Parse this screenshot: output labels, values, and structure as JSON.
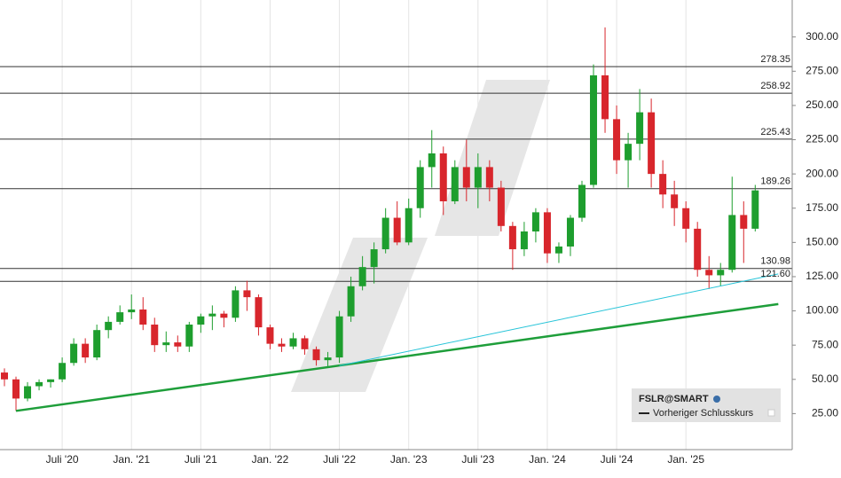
{
  "chart_data": {
    "type": "candlestick",
    "x": [
      "2020-02",
      "2020-03",
      "2020-04",
      "2020-05",
      "2020-06",
      "2020-07",
      "2020-08",
      "2020-09",
      "2020-10",
      "2020-11",
      "2020-12",
      "2021-01",
      "2021-02",
      "2021-03",
      "2021-04",
      "2021-05",
      "2021-06",
      "2021-07",
      "2021-08",
      "2021-09",
      "2021-10",
      "2021-11",
      "2021-12",
      "2022-01",
      "2022-02",
      "2022-03",
      "2022-04",
      "2022-05",
      "2022-06",
      "2022-07",
      "2022-08",
      "2022-09",
      "2022-10",
      "2022-11",
      "2022-12",
      "2023-01",
      "2023-02",
      "2023-03",
      "2023-04",
      "2023-05",
      "2023-06",
      "2023-07",
      "2023-08",
      "2023-09",
      "2023-10",
      "2023-11",
      "2023-12",
      "2024-01",
      "2024-02",
      "2024-03",
      "2024-04",
      "2024-05",
      "2024-06",
      "2024-07",
      "2024-08",
      "2024-09",
      "2024-10",
      "2024-11",
      "2024-12",
      "2025-01",
      "2025-02",
      "2025-03",
      "2025-04",
      "2025-05",
      "2025-06",
      "2025-07"
    ],
    "open": [
      55,
      50,
      36,
      45,
      48,
      50,
      62,
      76,
      66,
      86,
      92,
      99,
      101,
      90,
      75,
      77,
      74,
      90,
      96,
      98,
      95,
      115,
      110,
      88,
      76,
      74,
      80,
      72,
      64,
      66,
      96,
      118,
      132,
      145,
      168,
      150,
      175,
      205,
      215,
      180,
      205,
      190,
      205,
      190,
      162,
      145,
      158,
      172,
      142,
      147,
      168,
      192,
      272,
      240,
      210,
      222,
      245,
      200,
      185,
      175,
      160,
      130,
      126,
      130,
      170,
      160
    ],
    "high": [
      58,
      52,
      48,
      50,
      50,
      66,
      80,
      80,
      90,
      96,
      104,
      112,
      110,
      95,
      85,
      82,
      92,
      98,
      104,
      100,
      118,
      122,
      112,
      90,
      80,
      84,
      82,
      74,
      70,
      100,
      125,
      140,
      150,
      175,
      180,
      182,
      210,
      232,
      220,
      210,
      225,
      215,
      210,
      195,
      165,
      165,
      175,
      175,
      150,
      170,
      195,
      280,
      307,
      250,
      230,
      262,
      255,
      210,
      195,
      180,
      165,
      140,
      135,
      198,
      180,
      192
    ],
    "low": [
      45,
      27,
      34,
      42,
      44,
      48,
      60,
      62,
      64,
      80,
      90,
      94,
      86,
      70,
      70,
      70,
      70,
      84,
      86,
      88,
      92,
      100,
      82,
      72,
      70,
      72,
      68,
      60,
      59,
      62,
      92,
      115,
      120,
      142,
      148,
      148,
      168,
      190,
      170,
      178,
      180,
      175,
      180,
      158,
      130,
      140,
      150,
      135,
      135,
      140,
      165,
      190,
      230,
      200,
      190,
      210,
      190,
      175,
      162,
      150,
      125,
      116,
      118,
      128,
      135,
      158
    ],
    "close": [
      50,
      36,
      45,
      48,
      50,
      62,
      76,
      66,
      86,
      92,
      99,
      101,
      90,
      75,
      77,
      74,
      90,
      96,
      98,
      95,
      115,
      110,
      88,
      76,
      74,
      80,
      72,
      64,
      66,
      96,
      118,
      132,
      145,
      168,
      150,
      175,
      205,
      215,
      180,
      205,
      190,
      205,
      190,
      162,
      145,
      158,
      172,
      142,
      147,
      168,
      192,
      272,
      240,
      210,
      222,
      245,
      200,
      185,
      175,
      160,
      130,
      126,
      130,
      170,
      160,
      188
    ],
    "up_color": "#1e9e2e",
    "down_color": "#d8262c",
    "ylim": [
      0,
      327
    ],
    "yticks": [
      {
        "value": 25,
        "label": "25.00"
      },
      {
        "value": 50,
        "label": "50.00"
      },
      {
        "value": 75,
        "label": "75.00"
      },
      {
        "value": 100,
        "label": "100.00"
      },
      {
        "value": 125,
        "label": "125.00"
      },
      {
        "value": 150,
        "label": "150.00"
      },
      {
        "value": 175,
        "label": "175.00"
      },
      {
        "value": 200,
        "label": "200.00"
      },
      {
        "value": 225,
        "label": "225.00"
      },
      {
        "value": 250,
        "label": "250.00"
      },
      {
        "value": 275,
        "label": "275.00"
      },
      {
        "value": 300,
        "label": "300.00"
      }
    ],
    "xticks": [
      {
        "value": "2020-07",
        "label": "Juli '20"
      },
      {
        "value": "2021-01",
        "label": "Jan. '21"
      },
      {
        "value": "2021-07",
        "label": "Juli '21"
      },
      {
        "value": "2022-01",
        "label": "Jan. '22"
      },
      {
        "value": "2022-07",
        "label": "Juli '22"
      },
      {
        "value": "2023-01",
        "label": "Jan. '23"
      },
      {
        "value": "2023-07",
        "label": "Juli '23"
      },
      {
        "value": "2024-01",
        "label": "Jan. '24"
      },
      {
        "value": "2024-07",
        "label": "Juli '24"
      },
      {
        "value": "2025-01",
        "label": "Jan. '25"
      }
    ],
    "levels": [
      278.35,
      258.92,
      225.43,
      189.26,
      130.98,
      121.6
    ],
    "level_labels": [
      "278.35",
      "258.92",
      "225.43",
      "189.26",
      "130.98",
      "121.60"
    ],
    "trendlines": [
      {
        "color": "#1e9e3a",
        "x": [
          "2020-03",
          "2025-09"
        ],
        "values": [
          27,
          105
        ]
      },
      {
        "color": "#27c4d8",
        "x": [
          "2022-07",
          "2025-09"
        ],
        "values": [
          60,
          127
        ]
      }
    ],
    "legend": {
      "symbol": "FSLR@SMART",
      "entry": "Vorheriger Schlusskurs"
    }
  }
}
